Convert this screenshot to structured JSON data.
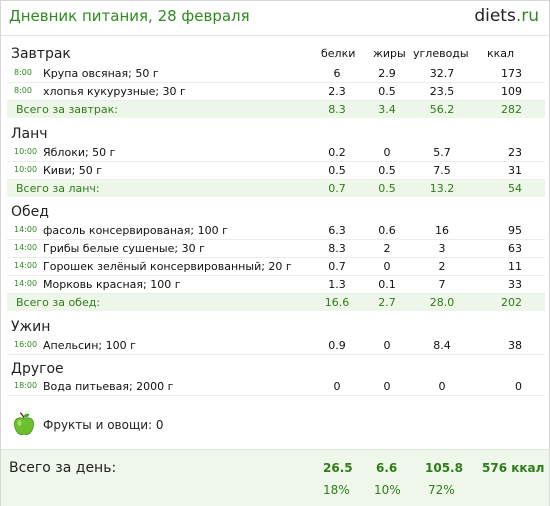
{
  "header": {
    "title": "Дневник питания, 28 февраля",
    "logo_main": "diets",
    "logo_dot": ".",
    "logo_tld": "ru"
  },
  "columns": {
    "protein": "белки",
    "fat": "жиры",
    "carbs": "углеводы",
    "kcal": "ккал"
  },
  "meals": [
    {
      "title": "Завтрак",
      "items": [
        {
          "time": "8:00",
          "name": "Крупа овсяная; 50 г",
          "protein": "6",
          "fat": "2.9",
          "carbs": "32.7",
          "kcal": "173"
        },
        {
          "time": "8:00",
          "name": "хлопья кукурузные; 30 г",
          "protein": "2.3",
          "fat": "0.5",
          "carbs": "23.5",
          "kcal": "109"
        }
      ],
      "total": {
        "label": "Всего за завтрак:",
        "protein": "8.3",
        "fat": "3.4",
        "carbs": "56.2",
        "kcal": "282"
      }
    },
    {
      "title": "Ланч",
      "items": [
        {
          "time": "10:00",
          "name": "Яблоки; 50 г",
          "protein": "0.2",
          "fat": "0",
          "carbs": "5.7",
          "kcal": "23"
        },
        {
          "time": "10:00",
          "name": "Киви; 50 г",
          "protein": "0.5",
          "fat": "0.5",
          "carbs": "7.5",
          "kcal": "31"
        }
      ],
      "total": {
        "label": "Всего за ланч:",
        "protein": "0.7",
        "fat": "0.5",
        "carbs": "13.2",
        "kcal": "54"
      }
    },
    {
      "title": "Обед",
      "items": [
        {
          "time": "14:00",
          "name": "фасоль консервированая; 100 г",
          "protein": "6.3",
          "fat": "0.6",
          "carbs": "16",
          "kcal": "95"
        },
        {
          "time": "14:00",
          "name": "Грибы белые сушеные; 30 г",
          "protein": "8.3",
          "fat": "2",
          "carbs": "3",
          "kcal": "63"
        },
        {
          "time": "14:00",
          "name": "Горошек зелёный консервированный; 20 г",
          "protein": "0.7",
          "fat": "0",
          "carbs": "2",
          "kcal": "11"
        },
        {
          "time": "14:00",
          "name": "Морковь красная; 100 г",
          "protein": "1.3",
          "fat": "0.1",
          "carbs": "7",
          "kcal": "33"
        }
      ],
      "total": {
        "label": "Всего за обед:",
        "protein": "16.6",
        "fat": "2.7",
        "carbs": "28.0",
        "kcal": "202"
      }
    },
    {
      "title": "Ужин",
      "items": [
        {
          "time": "16:00",
          "name": "Апельсин; 100 г",
          "protein": "0.9",
          "fat": "0",
          "carbs": "8.4",
          "kcal": "38"
        }
      ]
    },
    {
      "title": "Другое",
      "items": [
        {
          "time": "18:00",
          "name": "Вода питьевая; 2000 г",
          "protein": "0",
          "fat": "0",
          "carbs": "0",
          "kcal": "0"
        }
      ]
    }
  ],
  "fruits": {
    "label": "Фрукты и овощи: 0",
    "icon": "green-apple-icon"
  },
  "day_total": {
    "label": "Всего за день:",
    "protein": "26.5",
    "fat": "6.6",
    "carbs": "105.8",
    "kcal": "576 ккал",
    "protein_pct": "18%",
    "fat_pct": "10%",
    "carbs_pct": "72%"
  },
  "colors": {
    "accent": "#2e8b21",
    "total_bg": "#eef6ea"
  }
}
